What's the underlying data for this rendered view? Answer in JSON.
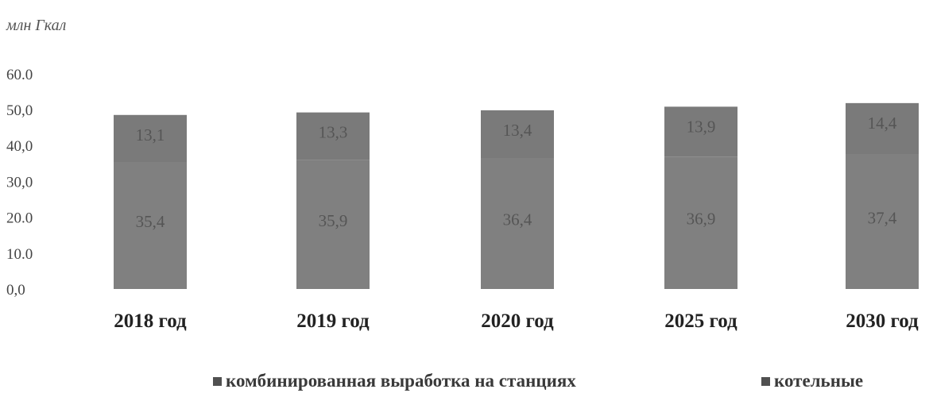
{
  "chart_data": {
    "type": "bar",
    "stacked": true,
    "unit_label": "млн Гкал",
    "categories": [
      "2018 год",
      "2019 год",
      "2020 год",
      "2025 год",
      "2030 год"
    ],
    "series": [
      {
        "name": "комбинированная выработка на станциях",
        "values": [
          35.4,
          35.9,
          36.4,
          36.9,
          37.4
        ],
        "labels": [
          "35,4",
          "35,9",
          "36,4",
          "36,9",
          "37,4"
        ],
        "color": "#808080"
      },
      {
        "name": "котельные",
        "values": [
          13.1,
          13.3,
          13.4,
          13.9,
          14.4
        ],
        "labels": [
          "13,1",
          "13,3",
          "13,4",
          "13,9",
          "14,4"
        ],
        "color": "#7a7a7a"
      }
    ],
    "y_ticks": [
      "0,0",
      "10.0",
      "20.0",
      "30,0",
      "40,0",
      "50,0",
      "60.0"
    ],
    "ylim": [
      0,
      60
    ],
    "grid": false,
    "legend_position": "bottom"
  }
}
